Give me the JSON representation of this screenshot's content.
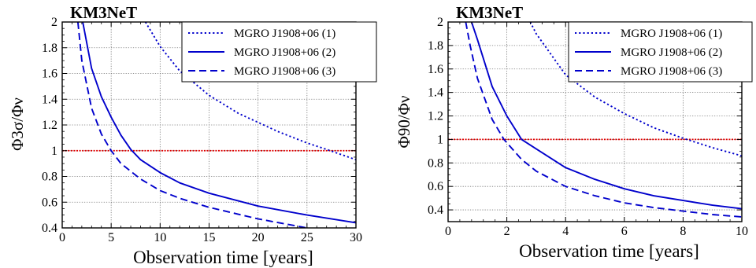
{
  "chart_data": [
    {
      "type": "line",
      "title": "KM3NeT",
      "xlabel": "Observation time [years]",
      "ylabel": "Φ3σ/Φν",
      "xlim": [
        0,
        30
      ],
      "ylim": [
        0.4,
        2
      ],
      "xticks": [
        0,
        5,
        10,
        15,
        20,
        25,
        30
      ],
      "xtick_labels": [
        "0",
        "5",
        "10",
        "15",
        "20",
        "25",
        "30"
      ],
      "yticks": [
        0.4,
        0.6,
        0.8,
        1,
        1.2,
        1.4,
        1.6,
        1.8,
        2
      ],
      "ytick_labels": [
        "0.4",
        "0.6",
        "0.8",
        "1",
        "1.2",
        "1.4",
        "1.6",
        "1.8",
        "2"
      ],
      "grid": true,
      "legend_position": "top-right",
      "reference_line": {
        "y": 1,
        "color": "#e00000"
      },
      "series": [
        {
          "name": "MGRO J1908+06 (1)",
          "style": "dotted",
          "color": "#0000cc",
          "x": [
            8.5,
            10,
            12,
            15,
            18,
            20,
            22,
            25,
            27,
            30
          ],
          "y": [
            2.0,
            1.81,
            1.62,
            1.43,
            1.29,
            1.22,
            1.15,
            1.06,
            1.01,
            0.93
          ]
        },
        {
          "name": "MGRO J1908+06 (2)",
          "style": "solid",
          "color": "#0000cc",
          "x": [
            2.1,
            3,
            4,
            5,
            6,
            7,
            8,
            10,
            12,
            15,
            20,
            25,
            30
          ],
          "y": [
            2.0,
            1.64,
            1.42,
            1.26,
            1.12,
            1.01,
            0.93,
            0.83,
            0.75,
            0.67,
            0.57,
            0.5,
            0.44
          ]
        },
        {
          "name": "MGRO J1908+06 (3)",
          "style": "dashed",
          "color": "#0000cc",
          "x": [
            1.6,
            2,
            3,
            4,
            5,
            6,
            8,
            10,
            12,
            15,
            20,
            25
          ],
          "y": [
            2.0,
            1.7,
            1.33,
            1.13,
            1.0,
            0.9,
            0.78,
            0.69,
            0.63,
            0.56,
            0.47,
            0.4
          ]
        }
      ]
    },
    {
      "type": "line",
      "title": "KM3NeT",
      "xlabel": "Observation time [years]",
      "ylabel": "Φ90/Φν",
      "xlim": [
        0,
        10
      ],
      "ylim": [
        0.3,
        2
      ],
      "xticks": [
        0,
        2,
        4,
        6,
        8,
        10
      ],
      "xtick_labels": [
        "0",
        "2",
        "4",
        "6",
        "8",
        "10"
      ],
      "yticks": [
        0.4,
        0.6,
        0.8,
        1,
        1.2,
        1.4,
        1.6,
        1.8,
        2
      ],
      "ytick_labels": [
        "0.4",
        "0.6",
        "0.8",
        "1",
        "1.2",
        "1.4",
        "1.6",
        "1.8",
        "2"
      ],
      "grid": true,
      "legend_position": "top-right",
      "reference_line": {
        "y": 1,
        "color": "#e00000"
      },
      "series": [
        {
          "name": "MGRO J1908+06 (1)",
          "style": "dotted",
          "color": "#0000cc",
          "x": [
            2.8,
            3,
            4,
            5,
            6,
            7,
            8,
            9,
            10
          ],
          "y": [
            2.0,
            1.9,
            1.55,
            1.36,
            1.22,
            1.1,
            1.01,
            0.93,
            0.86
          ]
        },
        {
          "name": "MGRO J1908+06 (2)",
          "style": "solid",
          "color": "#0000cc",
          "x": [
            0.8,
            1,
            1.5,
            2,
            2.5,
            3,
            4,
            5,
            6,
            7,
            8,
            9,
            10
          ],
          "y": [
            2.0,
            1.85,
            1.45,
            1.2,
            1.0,
            0.92,
            0.76,
            0.66,
            0.58,
            0.52,
            0.48,
            0.44,
            0.41
          ]
        },
        {
          "name": "MGRO J1908+06 (3)",
          "style": "dashed",
          "color": "#0000cc",
          "x": [
            0.6,
            0.75,
            1,
            1.5,
            1.9,
            2.5,
            3,
            4,
            5,
            6,
            7,
            8,
            9,
            10
          ],
          "y": [
            2.0,
            1.8,
            1.52,
            1.17,
            1.0,
            0.83,
            0.73,
            0.6,
            0.52,
            0.46,
            0.42,
            0.39,
            0.36,
            0.34
          ]
        }
      ]
    }
  ]
}
